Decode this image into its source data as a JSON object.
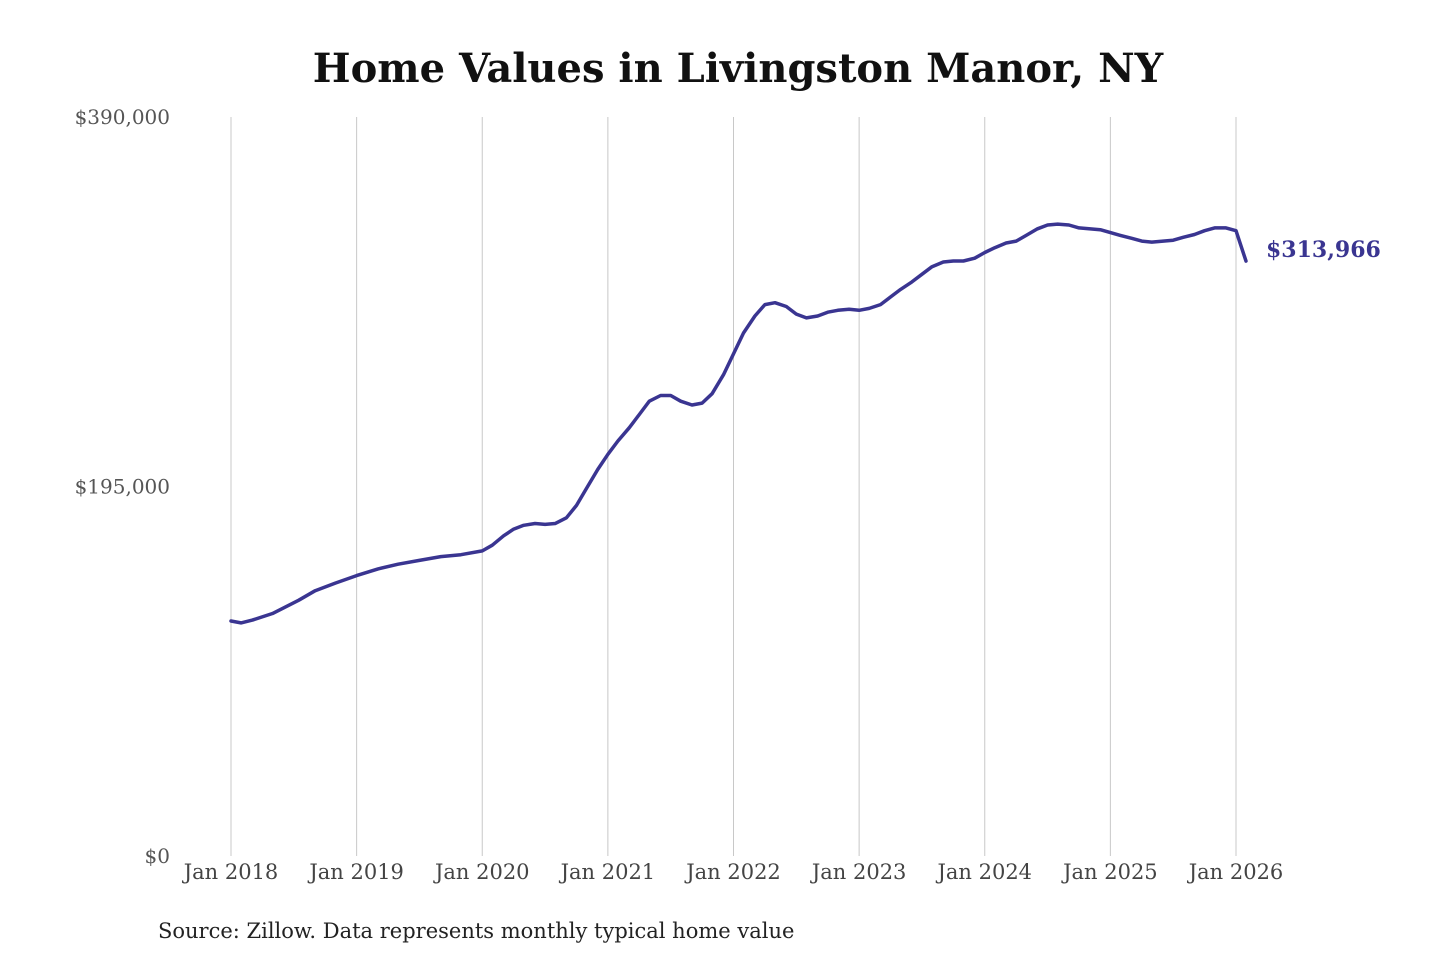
{
  "chart_data": {
    "type": "line",
    "title": "Home Values in Livingston Manor, NY",
    "source": "Source: Zillow. Data represents monthly typical home value",
    "ylim": [
      0,
      390000
    ],
    "y_ticks": [
      {
        "value": 0,
        "label": "$0"
      },
      {
        "value": 195000,
        "label": "$195,000"
      },
      {
        "value": 390000,
        "label": "$390,000"
      }
    ],
    "x_ticks": [
      {
        "value": 2018,
        "label": "Jan 2018"
      },
      {
        "value": 2019,
        "label": "Jan 2019"
      },
      {
        "value": 2020,
        "label": "Jan 2020"
      },
      {
        "value": 2021,
        "label": "Jan 2021"
      },
      {
        "value": 2022,
        "label": "Jan 2022"
      },
      {
        "value": 2023,
        "label": "Jan 2023"
      },
      {
        "value": 2024,
        "label": "Jan 2024"
      },
      {
        "value": 2025,
        "label": "Jan 2025"
      },
      {
        "value": 2026,
        "label": "Jan 2026"
      }
    ],
    "xlim": [
      2018,
      2026
    ],
    "grid": "vertical",
    "line_color": "#3a3591",
    "end_label": "$313,966",
    "series": [
      {
        "x": [
          2018.0,
          2018.08,
          2018.17,
          2018.33,
          2018.42,
          2018.54,
          2018.67,
          2018.83,
          2019.0,
          2019.17,
          2019.33,
          2019.5,
          2019.67,
          2019.83,
          2020.0,
          2020.08,
          2020.17,
          2020.25,
          2020.33,
          2020.42,
          2020.5,
          2020.58,
          2020.67,
          2020.75,
          2020.83,
          2020.92,
          2021.0,
          2021.08,
          2021.17,
          2021.25,
          2021.33,
          2021.42,
          2021.5,
          2021.58,
          2021.67,
          2021.75,
          2021.83,
          2021.92,
          2022.0,
          2022.08,
          2022.17,
          2022.25,
          2022.33,
          2022.42,
          2022.5,
          2022.58,
          2022.67,
          2022.75,
          2022.83,
          2022.92,
          2023.0,
          2023.08,
          2023.17,
          2023.25,
          2023.33,
          2023.42,
          2023.5,
          2023.58,
          2023.67,
          2023.75,
          2023.83,
          2023.92,
          2024.0,
          2024.08,
          2024.17,
          2024.25,
          2024.33,
          2024.42,
          2024.5,
          2024.58,
          2024.67,
          2024.75,
          2024.83,
          2024.92,
          2025.0,
          2025.08,
          2025.17,
          2025.25,
          2025.33,
          2025.42,
          2025.5,
          2025.58,
          2025.67,
          2025.75,
          2025.83,
          2025.92,
          2026.0,
          2026.08
        ],
        "values": [
          124000,
          123000,
          124500,
          128000,
          131000,
          135000,
          140000,
          144000,
          148000,
          151500,
          154000,
          156000,
          158000,
          159000,
          161000,
          164000,
          169000,
          172500,
          174500,
          175500,
          175000,
          175500,
          178500,
          185000,
          194000,
          204000,
          212000,
          219000,
          226000,
          233000,
          240000,
          243000,
          243000,
          240000,
          238000,
          239000,
          244000,
          254000,
          265000,
          276000,
          285000,
          291000,
          292000,
          290000,
          286000,
          284000,
          285000,
          287000,
          288000,
          288500,
          288000,
          289000,
          291000,
          295000,
          299000,
          303000,
          307000,
          311000,
          313500,
          314000,
          314000,
          315500,
          318500,
          321000,
          323500,
          324500,
          327500,
          331000,
          333000,
          333500,
          333000,
          331500,
          331000,
          330500,
          329000,
          327500,
          326000,
          324500,
          324000,
          324500,
          325000,
          326500,
          328000,
          330000,
          331500,
          331500,
          330000,
          313966
        ]
      }
    ]
  }
}
